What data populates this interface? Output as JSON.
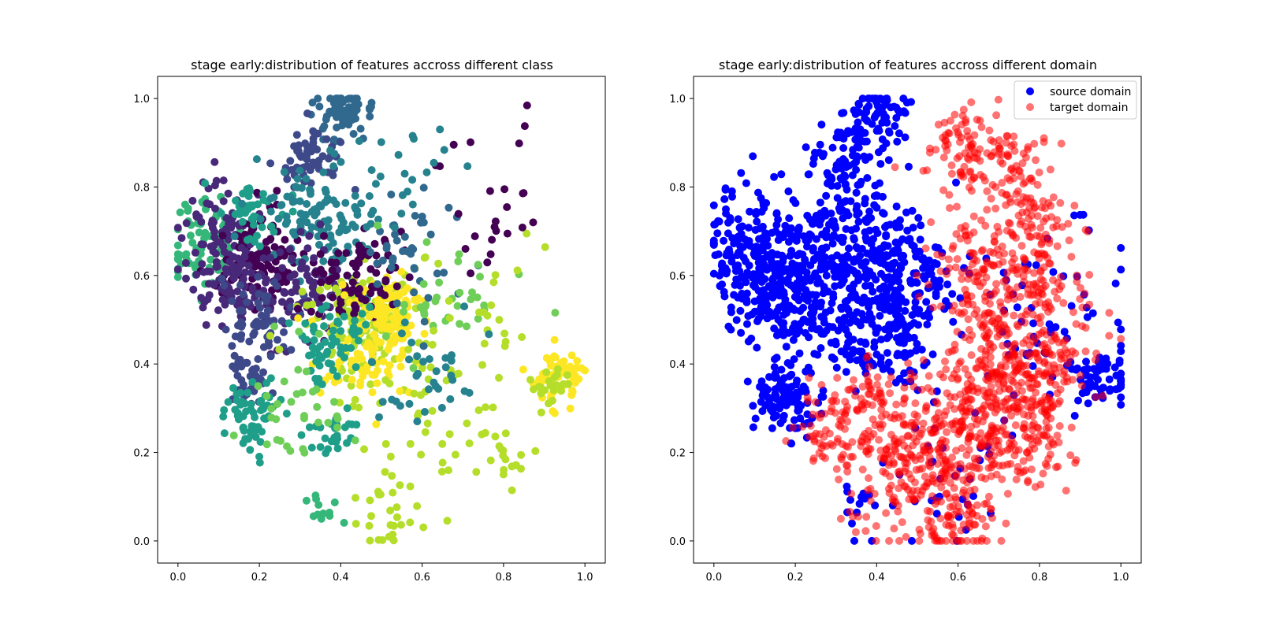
{
  "chart_data": [
    {
      "type": "scatter",
      "title": "stage early:distribution of features accross different class",
      "xlabel": "",
      "ylabel": "",
      "xlim": [
        -0.05,
        1.05
      ],
      "ylim": [
        -0.05,
        1.05
      ],
      "xticks": [
        "0.0",
        "0.2",
        "0.4",
        "0.6",
        "0.8",
        "1.0"
      ],
      "yticks": [
        "0.0",
        "0.2",
        "0.4",
        "0.6",
        "0.8",
        "1.0"
      ],
      "colormap": "viridis",
      "palette": [
        "#440154",
        "#482878",
        "#3e4989",
        "#31688e",
        "#26828e",
        "#1f9e89",
        "#35b779",
        "#6ece58",
        "#b5de2b",
        "#fde725"
      ],
      "clusters": [
        {
          "cx": 0.4,
          "cy": 0.96,
          "r": 0.035,
          "n": 70,
          "class": 3
        },
        {
          "cx": 0.32,
          "cy": 0.87,
          "r": 0.04,
          "n": 60,
          "class": 2
        },
        {
          "cx": 0.06,
          "cy": 0.67,
          "r": 0.05,
          "n": 80,
          "class": 6
        },
        {
          "cx": 0.1,
          "cy": 0.72,
          "r": 0.05,
          "n": 60,
          "class": 1
        },
        {
          "cx": 0.2,
          "cy": 0.64,
          "r": 0.05,
          "n": 110,
          "class": 0
        },
        {
          "cx": 0.12,
          "cy": 0.58,
          "r": 0.05,
          "n": 80,
          "class": 1
        },
        {
          "cx": 0.19,
          "cy": 0.74,
          "r": 0.04,
          "n": 40,
          "class": 5
        },
        {
          "cx": 0.35,
          "cy": 0.72,
          "r": 0.07,
          "n": 120,
          "class": 4
        },
        {
          "cx": 0.3,
          "cy": 0.56,
          "r": 0.06,
          "n": 90,
          "class": 1
        },
        {
          "cx": 0.22,
          "cy": 0.5,
          "r": 0.05,
          "n": 60,
          "class": 2
        },
        {
          "cx": 0.45,
          "cy": 0.5,
          "r": 0.07,
          "n": 140,
          "class": 8
        },
        {
          "cx": 0.52,
          "cy": 0.52,
          "r": 0.05,
          "n": 80,
          "class": 9
        },
        {
          "cx": 0.42,
          "cy": 0.6,
          "r": 0.06,
          "n": 80,
          "class": 0
        },
        {
          "cx": 0.47,
          "cy": 0.42,
          "r": 0.06,
          "n": 80,
          "class": 9
        },
        {
          "cx": 0.38,
          "cy": 0.45,
          "r": 0.05,
          "n": 60,
          "class": 5
        },
        {
          "cx": 0.18,
          "cy": 0.37,
          "r": 0.03,
          "n": 40,
          "class": 2
        },
        {
          "cx": 0.18,
          "cy": 0.29,
          "r": 0.035,
          "n": 60,
          "class": 5
        },
        {
          "cx": 0.38,
          "cy": 0.24,
          "r": 0.03,
          "n": 25,
          "class": 5
        },
        {
          "cx": 0.35,
          "cy": 0.07,
          "r": 0.02,
          "n": 12,
          "class": 6
        },
        {
          "cx": 0.95,
          "cy": 0.38,
          "r": 0.035,
          "n": 50,
          "class": 9
        },
        {
          "cx": 0.92,
          "cy": 0.34,
          "r": 0.025,
          "n": 20,
          "class": 8
        },
        {
          "cx": 0.57,
          "cy": 0.65,
          "r": 0.06,
          "n": 40,
          "class": 3
        },
        {
          "cx": 0.65,
          "cy": 0.55,
          "r": 0.08,
          "n": 35,
          "class": 7
        },
        {
          "cx": 0.75,
          "cy": 0.45,
          "r": 0.1,
          "n": 35,
          "class": 8
        },
        {
          "cx": 0.6,
          "cy": 0.25,
          "r": 0.08,
          "n": 30,
          "class": 8
        },
        {
          "cx": 0.8,
          "cy": 0.2,
          "r": 0.04,
          "n": 20,
          "class": 8
        },
        {
          "cx": 0.75,
          "cy": 0.75,
          "r": 0.08,
          "n": 25,
          "class": 0
        },
        {
          "cx": 0.55,
          "cy": 0.85,
          "r": 0.06,
          "n": 20,
          "class": 4
        },
        {
          "cx": 0.5,
          "cy": 0.05,
          "r": 0.06,
          "n": 25,
          "class": 8
        },
        {
          "cx": 0.6,
          "cy": 0.38,
          "r": 0.06,
          "n": 35,
          "class": 4
        },
        {
          "cx": 0.3,
          "cy": 0.3,
          "r": 0.07,
          "n": 35,
          "class": 7
        }
      ]
    },
    {
      "type": "scatter",
      "title": "stage early:distribution of features accross different domain",
      "xlabel": "",
      "ylabel": "",
      "xlim": [
        -0.05,
        1.05
      ],
      "ylim": [
        -0.05,
        1.05
      ],
      "xticks": [
        "0.0",
        "0.2",
        "0.4",
        "0.6",
        "0.8",
        "1.0"
      ],
      "yticks": [
        "0.0",
        "0.2",
        "0.4",
        "0.6",
        "0.8",
        "1.0"
      ],
      "legend_position": "upper right",
      "series": [
        {
          "name": "source domain",
          "color": "#0000ff",
          "alpha": 1.0,
          "clusters": [
            {
              "cx": 0.4,
              "cy": 0.96,
              "r": 0.035,
              "n": 70
            },
            {
              "cx": 0.32,
              "cy": 0.87,
              "r": 0.04,
              "n": 60
            },
            {
              "cx": 0.07,
              "cy": 0.67,
              "r": 0.06,
              "n": 120
            },
            {
              "cx": 0.2,
              "cy": 0.62,
              "r": 0.07,
              "n": 160
            },
            {
              "cx": 0.12,
              "cy": 0.56,
              "r": 0.05,
              "n": 80
            },
            {
              "cx": 0.36,
              "cy": 0.7,
              "r": 0.07,
              "n": 160
            },
            {
              "cx": 0.45,
              "cy": 0.58,
              "r": 0.07,
              "n": 170
            },
            {
              "cx": 0.28,
              "cy": 0.52,
              "r": 0.07,
              "n": 120
            },
            {
              "cx": 0.42,
              "cy": 0.47,
              "r": 0.06,
              "n": 100
            },
            {
              "cx": 0.18,
              "cy": 0.35,
              "r": 0.035,
              "n": 50
            },
            {
              "cx": 0.18,
              "cy": 0.29,
              "r": 0.035,
              "n": 60
            },
            {
              "cx": 0.95,
              "cy": 0.37,
              "r": 0.04,
              "n": 60
            },
            {
              "cx": 0.8,
              "cy": 0.55,
              "r": 0.1,
              "n": 60
            },
            {
              "cx": 0.55,
              "cy": 0.15,
              "r": 0.1,
              "n": 40
            },
            {
              "cx": 0.35,
              "cy": 0.08,
              "r": 0.02,
              "n": 12
            }
          ]
        },
        {
          "name": "target domain",
          "color": "#ff0000",
          "alpha": 0.55,
          "clusters": [
            {
              "cx": 0.62,
              "cy": 0.9,
              "r": 0.06,
              "n": 80
            },
            {
              "cx": 0.72,
              "cy": 0.85,
              "r": 0.05,
              "n": 60
            },
            {
              "cx": 0.78,
              "cy": 0.72,
              "r": 0.05,
              "n": 70
            },
            {
              "cx": 0.65,
              "cy": 0.65,
              "r": 0.06,
              "n": 80
            },
            {
              "cx": 0.8,
              "cy": 0.55,
              "r": 0.06,
              "n": 90
            },
            {
              "cx": 0.68,
              "cy": 0.5,
              "r": 0.06,
              "n": 90
            },
            {
              "cx": 0.82,
              "cy": 0.4,
              "r": 0.06,
              "n": 90
            },
            {
              "cx": 0.7,
              "cy": 0.38,
              "r": 0.05,
              "n": 70
            },
            {
              "cx": 0.75,
              "cy": 0.28,
              "r": 0.07,
              "n": 110
            },
            {
              "cx": 0.58,
              "cy": 0.3,
              "r": 0.06,
              "n": 90
            },
            {
              "cx": 0.62,
              "cy": 0.18,
              "r": 0.07,
              "n": 120
            },
            {
              "cx": 0.45,
              "cy": 0.22,
              "r": 0.06,
              "n": 90
            },
            {
              "cx": 0.5,
              "cy": 0.1,
              "r": 0.07,
              "n": 110
            },
            {
              "cx": 0.62,
              "cy": 0.05,
              "r": 0.04,
              "n": 40
            },
            {
              "cx": 0.3,
              "cy": 0.26,
              "r": 0.05,
              "n": 80
            },
            {
              "cx": 0.38,
              "cy": 0.33,
              "r": 0.03,
              "n": 30
            },
            {
              "cx": 0.8,
              "cy": 0.2,
              "r": 0.04,
              "n": 40
            }
          ]
        }
      ]
    }
  ]
}
